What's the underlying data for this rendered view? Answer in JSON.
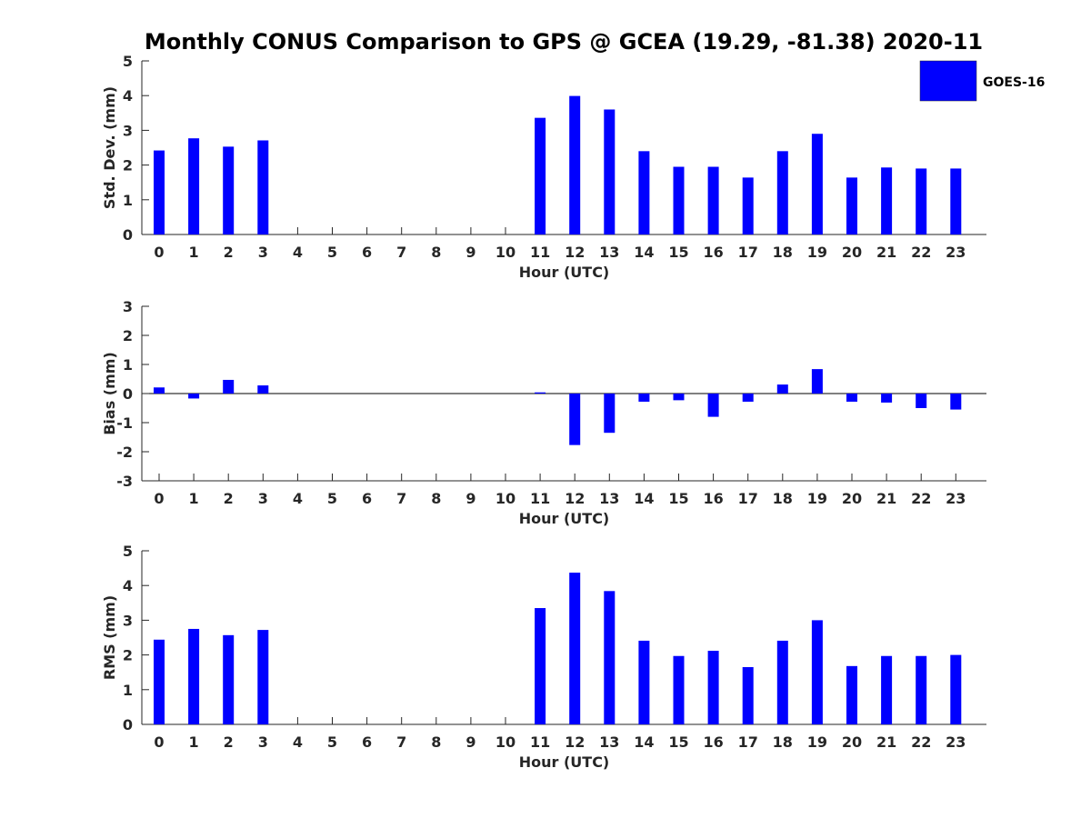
{
  "chart_data": {
    "title": "Monthly CONUS Comparison to GPS @ GCEA (19.29, -81.38) 2020-11",
    "legend": {
      "label": "GOES-16",
      "color": "#0000ff",
      "placement": "top-right"
    },
    "panels": [
      {
        "type": "bar",
        "id": "std",
        "ylabel": "Std. Dev. (mm)",
        "xlabel": "Hour (UTC)",
        "ylim": [
          0,
          5
        ],
        "yticks": [
          0,
          1,
          2,
          3,
          4,
          5
        ],
        "categories": [
          "0",
          "1",
          "2",
          "3",
          "4",
          "5",
          "6",
          "7",
          "8",
          "9",
          "10",
          "11",
          "12",
          "13",
          "14",
          "15",
          "16",
          "17",
          "18",
          "19",
          "20",
          "21",
          "22",
          "23"
        ],
        "values": [
          2.42,
          2.77,
          2.53,
          2.71,
          null,
          null,
          null,
          null,
          null,
          null,
          null,
          3.36,
          3.99,
          3.6,
          2.4,
          1.95,
          1.95,
          1.64,
          2.4,
          2.9,
          1.64,
          1.93,
          1.9,
          1.9
        ]
      },
      {
        "type": "bar",
        "id": "bias",
        "ylabel": "Bias (mm)",
        "xlabel": "Hour (UTC)",
        "ylim": [
          -3,
          3
        ],
        "yticks": [
          -3,
          -2,
          -1,
          0,
          1,
          2,
          3
        ],
        "categories": [
          "0",
          "1",
          "2",
          "3",
          "4",
          "5",
          "6",
          "7",
          "8",
          "9",
          "10",
          "11",
          "12",
          "13",
          "14",
          "15",
          "16",
          "17",
          "18",
          "19",
          "20",
          "21",
          "22",
          "23"
        ],
        "values": [
          0.21,
          -0.17,
          0.47,
          0.28,
          null,
          null,
          null,
          null,
          null,
          null,
          null,
          0.04,
          -1.77,
          -1.35,
          -0.28,
          -0.23,
          -0.8,
          -0.28,
          0.31,
          0.84,
          -0.28,
          -0.31,
          -0.5,
          -0.55
        ]
      },
      {
        "type": "bar",
        "id": "rms",
        "ylabel": "RMS (mm)",
        "xlabel": "Hour (UTC)",
        "ylim": [
          0,
          5
        ],
        "yticks": [
          0,
          1,
          2,
          3,
          4,
          5
        ],
        "categories": [
          "0",
          "1",
          "2",
          "3",
          "4",
          "5",
          "6",
          "7",
          "8",
          "9",
          "10",
          "11",
          "12",
          "13",
          "14",
          "15",
          "16",
          "17",
          "18",
          "19",
          "20",
          "21",
          "22",
          "23"
        ],
        "values": [
          2.44,
          2.75,
          2.57,
          2.72,
          null,
          null,
          null,
          null,
          null,
          null,
          null,
          3.35,
          4.37,
          3.84,
          2.41,
          1.97,
          2.12,
          1.65,
          2.41,
          3.0,
          1.68,
          1.97,
          1.97,
          2.0
        ]
      }
    ]
  }
}
